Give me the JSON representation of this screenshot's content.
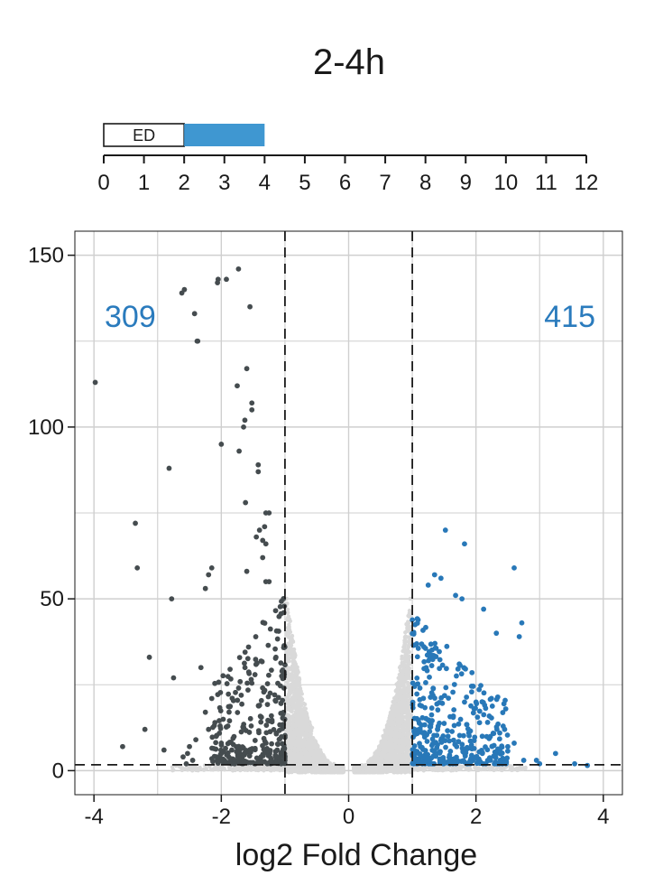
{
  "title": "2-4h",
  "timeline": {
    "ticks": [
      "0",
      "1",
      "2",
      "3",
      "4",
      "5",
      "6",
      "7",
      "8",
      "9",
      "10",
      "11",
      "12"
    ],
    "range": [
      0,
      12
    ],
    "ed_label": "ED",
    "ed_span": [
      0,
      2
    ],
    "treatment_span": [
      2,
      4
    ],
    "treatment_color": "#3f97d1"
  },
  "chart_data": {
    "type": "scatter",
    "title": "",
    "xlabel": "log2 Fold Change",
    "ylabel": "",
    "xlim": [
      -4.3,
      4.3
    ],
    "ylim": [
      -7,
      157
    ],
    "xticks": [
      -4,
      -2,
      0,
      2,
      4
    ],
    "xtick_labels": [
      "-4",
      "-2",
      "0",
      "2",
      "4"
    ],
    "yticks": [
      0,
      50,
      100,
      150
    ],
    "ytick_labels": [
      "0",
      "50",
      "100",
      "150"
    ],
    "grid": true,
    "fc_thresholds": [
      -1,
      1
    ],
    "p_threshold": 1.7,
    "annotations": {
      "down_count": "309",
      "up_count": "415"
    },
    "colors": {
      "down": "#454c4f",
      "up": "#2878b8",
      "ns": "#d9d9d9",
      "grid": "#cfcfcf",
      "count_text": "#2a7bbd"
    },
    "series": [
      {
        "values": [
          [
            -3.98,
            113
          ],
          [
            -3.35,
            72
          ],
          [
            -3.32,
            59
          ],
          [
            -3.13,
            33
          ],
          [
            -3.55,
            7
          ],
          [
            -3.2,
            12
          ],
          [
            -2.9,
            6
          ],
          [
            -2.75,
            27
          ],
          [
            -2.78,
            50
          ],
          [
            -2.53,
            5
          ],
          [
            -2.62,
            139
          ],
          [
            -2.58,
            140
          ],
          [
            -2.42,
            133
          ],
          [
            -2.38,
            125
          ],
          [
            -2.37,
            125
          ],
          [
            -2.82,
            88
          ],
          [
            -2.05,
            143
          ],
          [
            -2.06,
            142
          ],
          [
            -1.92,
            143
          ],
          [
            -1.73,
            146
          ],
          [
            -1.55,
            135
          ],
          [
            -1.75,
            112
          ],
          [
            -1.6,
            117
          ],
          [
            -1.52,
            107
          ],
          [
            -1.52,
            105
          ],
          [
            -1.65,
            100
          ],
          [
            -1.63,
            102
          ],
          [
            -2.0,
            95
          ],
          [
            -1.72,
            93
          ],
          [
            -1.42,
            87
          ],
          [
            -1.42,
            89
          ],
          [
            -1.62,
            78
          ],
          [
            -1.3,
            75
          ],
          [
            -1.25,
            75
          ],
          [
            -1.4,
            70
          ],
          [
            -1.32,
            71
          ],
          [
            -1.35,
            67
          ],
          [
            -1.3,
            66
          ],
          [
            -2.15,
            59
          ],
          [
            -2.2,
            57
          ],
          [
            -2.25,
            53
          ],
          [
            -1.6,
            58
          ],
          [
            -1.45,
            68
          ],
          [
            -1.35,
            62
          ],
          [
            -1.3,
            55
          ],
          [
            -1.25,
            55
          ],
          [
            -2.32,
            30
          ],
          [
            -2.15,
            21
          ],
          [
            -2.1,
            14
          ],
          [
            -2.25,
            17
          ],
          [
            -2.2,
            12
          ],
          [
            -2.5,
            7
          ],
          [
            -2.4,
            9
          ],
          [
            -2.6,
            4
          ],
          [
            -2.55,
            2
          ],
          [
            -2.45,
            3
          ],
          [
            -2.0,
            8
          ],
          [
            -2.08,
            10
          ],
          [
            -2.0,
            5
          ],
          [
            -2.0,
            3
          ]
        ]
      },
      {
        "values": [
          [
            1.52,
            70
          ],
          [
            1.82,
            66
          ],
          [
            2.6,
            59
          ],
          [
            1.35,
            57
          ],
          [
            1.45,
            56
          ],
          [
            1.25,
            54
          ],
          [
            1.68,
            51
          ],
          [
            1.78,
            50
          ],
          [
            2.12,
            47
          ],
          [
            2.72,
            43
          ],
          [
            2.68,
            39
          ],
          [
            2.32,
            40
          ],
          [
            3.25,
            5
          ],
          [
            3.0,
            2
          ],
          [
            3.55,
            2
          ],
          [
            3.75,
            1.5
          ],
          [
            2.95,
            3
          ],
          [
            2.75,
            3
          ],
          [
            2.45,
            12
          ],
          [
            2.5,
            7
          ],
          [
            2.38,
            3
          ],
          [
            2.6,
            8
          ],
          [
            2.2,
            3
          ],
          [
            2.1,
            5
          ]
        ]
      }
    ]
  }
}
